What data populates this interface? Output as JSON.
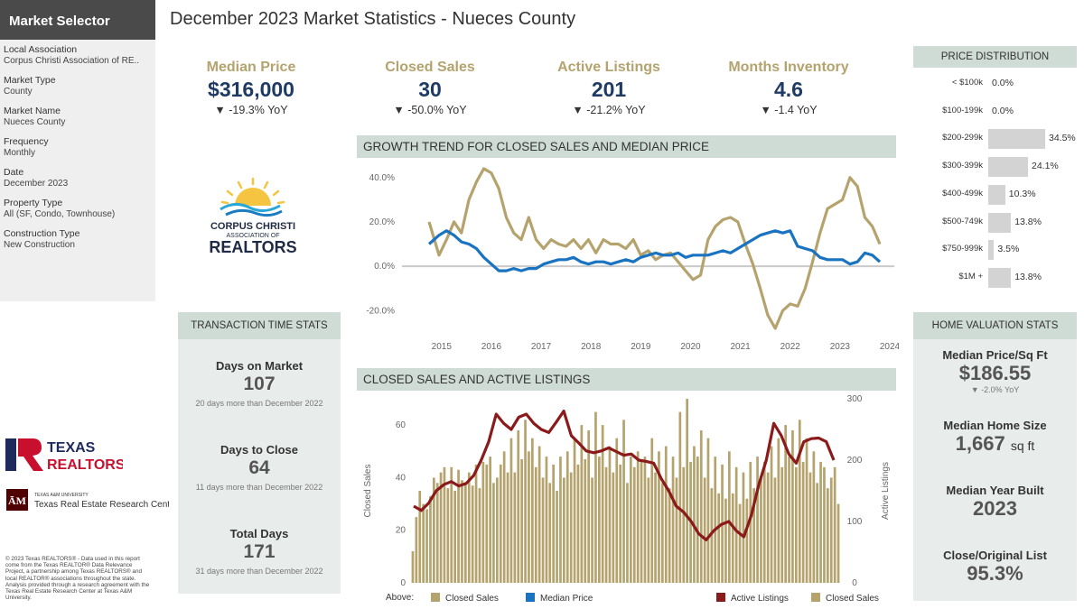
{
  "sidebar": {
    "title": "Market Selector",
    "filters": [
      {
        "label": "Local Association",
        "value": "Corpus Christi Association of RE.."
      },
      {
        "label": "Market Type",
        "value": "County"
      },
      {
        "label": "Market Name",
        "value": "Nueces County"
      },
      {
        "label": "Frequency",
        "value": "Monthly"
      },
      {
        "label": "Date",
        "value": "December 2023"
      },
      {
        "label": "Property Type",
        "value": "All (SF, Condo, Townhouse)"
      },
      {
        "label": "Construction Type",
        "value": "New Construction"
      }
    ]
  },
  "page_title": "December 2023 Market Statistics - Nueces County",
  "kpis": [
    {
      "label": "Median Price",
      "value": "$316,000",
      "change": "▼ -19.3% YoY"
    },
    {
      "label": "Closed Sales",
      "value": "30",
      "change": "▼ -50.0% YoY"
    },
    {
      "label": "Active Listings",
      "value": "201",
      "change": "▼ -21.2% YoY"
    },
    {
      "label": "Months Inventory",
      "value": "4.6",
      "change": "▼ -1.4 YoY"
    }
  ],
  "logos": {
    "cc_line1": "CORPUS CHRISTI",
    "cc_line2": "ASSOCIATION OF",
    "cc_line3": "REALTORS",
    "tx_line1": "TEXAS",
    "tx_line2": "REALTORS",
    "tamu_small": "TEXAS A&M UNIVERSITY",
    "tamu_name": "Texas Real Estate Research Center"
  },
  "copyright": "© 2023 Texas REALTORS® - Data used in this report come from the Texas REALTOR® Data Relevance Project, a partnership among Texas REALTORS® and local REALTOR® associations throughout the state. Analysis provided through a research agreement with the Texas Real Estate Research Center at Texas A&M University.",
  "transaction_stats": {
    "header": "TRANSACTION TIME STATS",
    "items": [
      {
        "title": "Days on Market",
        "value": "107",
        "note": "20 days more than December 2022"
      },
      {
        "title": "Days to Close",
        "value": "64",
        "note": "11 days more than December 2022"
      },
      {
        "title": "Total Days",
        "value": "171",
        "note": "31 days more than December 2022"
      }
    ]
  },
  "price_distribution": {
    "header": "PRICE DISTRIBUTION",
    "rows": [
      {
        "label": "< $100k",
        "pct": 0.0,
        "pct_label": "0.0%"
      },
      {
        "label": "$100-199k",
        "pct": 0.0,
        "pct_label": "0.0%"
      },
      {
        "label": "$200-299k",
        "pct": 34.5,
        "pct_label": "34.5%"
      },
      {
        "label": "$300-399k",
        "pct": 24.1,
        "pct_label": "24.1%"
      },
      {
        "label": "$400-499k",
        "pct": 10.3,
        "pct_label": "10.3%"
      },
      {
        "label": "$500-749k",
        "pct": 13.8,
        "pct_label": "13.8%"
      },
      {
        "label": "$750-999k",
        "pct": 3.5,
        "pct_label": "3.5%"
      },
      {
        "label": "$1M +",
        "pct": 13.8,
        "pct_label": "13.8%"
      }
    ]
  },
  "home_valuation": {
    "header": "HOME VALUATION STATS",
    "median_price_sqft_title": "Median Price/Sq Ft",
    "median_price_sqft_value": "$186.55",
    "median_price_sqft_note": "▼ -2.0% YoY",
    "median_home_size_title": "Median Home Size",
    "median_home_size_value": "1,667",
    "median_home_size_unit": "sq ft",
    "median_year_built_title": "Median Year Built",
    "median_year_built_value": "2023",
    "close_original_title": "Close/Original List",
    "close_original_value": "95.3%"
  },
  "colors": {
    "gold": "#b5a36e",
    "blue": "#1a73c1",
    "maroon": "#8b1a1a",
    "navy": "#1f3b64"
  },
  "chart_data": [
    {
      "type": "line",
      "title": "GROWTH TREND FOR CLOSED SALES AND MEDIAN PRICE",
      "x_ticks": [
        "2015",
        "2016",
        "2017",
        "2018",
        "2019",
        "2020",
        "2021",
        "2022",
        "2023",
        "2024"
      ],
      "y_ticks": [
        "40.0%",
        "20.0%",
        "0.0%",
        "-20.0%"
      ],
      "ylim": [
        -28,
        46
      ],
      "xlim": [
        2014.75,
        2024.0
      ],
      "series": [
        {
          "name": "Closed Sales",
          "color": "#b5a36e",
          "x": [
            2014.75,
            2014.95,
            2015.1,
            2015.25,
            2015.4,
            2015.55,
            2015.7,
            2015.85,
            2016.0,
            2016.15,
            2016.3,
            2016.45,
            2016.6,
            2016.75,
            2016.9,
            2017.05,
            2017.2,
            2017.35,
            2017.5,
            2017.65,
            2017.8,
            2017.95,
            2018.1,
            2018.25,
            2018.4,
            2018.55,
            2018.7,
            2018.85,
            2019.0,
            2019.15,
            2019.3,
            2019.45,
            2019.6,
            2019.75,
            2019.9,
            2020.05,
            2020.2,
            2020.35,
            2020.5,
            2020.65,
            2020.8,
            2020.95,
            2021.1,
            2021.25,
            2021.4,
            2021.55,
            2021.7,
            2021.85,
            2022.0,
            2022.15,
            2022.3,
            2022.45,
            2022.6,
            2022.75,
            2022.9,
            2023.05,
            2023.2,
            2023.35,
            2023.5,
            2023.65,
            2023.8
          ],
          "values": [
            20,
            5,
            12,
            20,
            15,
            30,
            38,
            44,
            42,
            35,
            22,
            15,
            12,
            22,
            12,
            8,
            12,
            10,
            9,
            12,
            8,
            12,
            6,
            12,
            10,
            10,
            8,
            12,
            5,
            7,
            3,
            5,
            6,
            2,
            -2,
            -6,
            -4,
            12,
            18,
            21,
            22,
            20,
            10,
            1,
            -10,
            -22,
            -28,
            -20,
            -17,
            -18,
            -10,
            2,
            15,
            26,
            28,
            30,
            40,
            36,
            22,
            18,
            10
          ]
        },
        {
          "name": "Median Price",
          "color": "#1a73c1",
          "x": [
            2014.75,
            2014.95,
            2015.1,
            2015.25,
            2015.4,
            2015.55,
            2015.7,
            2015.85,
            2016.0,
            2016.15,
            2016.3,
            2016.45,
            2016.6,
            2016.75,
            2016.9,
            2017.05,
            2017.2,
            2017.35,
            2017.5,
            2017.65,
            2017.8,
            2017.95,
            2018.1,
            2018.25,
            2018.4,
            2018.55,
            2018.7,
            2018.85,
            2019.0,
            2019.15,
            2019.3,
            2019.45,
            2019.6,
            2019.75,
            2019.9,
            2020.05,
            2020.2,
            2020.35,
            2020.5,
            2020.65,
            2020.8,
            2020.95,
            2021.1,
            2021.25,
            2021.4,
            2021.55,
            2021.7,
            2021.85,
            2022.0,
            2022.15,
            2022.3,
            2022.45,
            2022.6,
            2022.75,
            2022.9,
            2023.05,
            2023.2,
            2023.35,
            2023.5,
            2023.65,
            2023.8
          ],
          "values": [
            10,
            14,
            16,
            14,
            11,
            10,
            8,
            4,
            1,
            -2,
            -2,
            -1,
            -2,
            -1,
            -1,
            1,
            2,
            3,
            3,
            4,
            2,
            1,
            2,
            2,
            1,
            2,
            3,
            2,
            4,
            5,
            6,
            5,
            5,
            6,
            4,
            5,
            5,
            5,
            6,
            7,
            6,
            8,
            10,
            12,
            14,
            15,
            16,
            15,
            16,
            9,
            8,
            7,
            4,
            3,
            3,
            3,
            1,
            2,
            6,
            5,
            2
          ]
        }
      ]
    },
    {
      "type": "bar",
      "title": "CLOSED SALES AND ACTIVE LISTINGS",
      "ylabel": "Closed Sales",
      "ylabel_right": "Active Listings",
      "ylim": [
        0,
        70
      ],
      "ylim_right": [
        0,
        300
      ],
      "left_ticks": [
        0,
        20,
        40,
        60
      ],
      "right_ticks": [
        0,
        100,
        200,
        300
      ],
      "series": [
        {
          "name": "Closed Sales",
          "color": "#b5a36e",
          "values": [
            12,
            25,
            35,
            30,
            28,
            33,
            40,
            38,
            42,
            44,
            36,
            44,
            35,
            43,
            39,
            38,
            42,
            37,
            45,
            36,
            46,
            45,
            48,
            38,
            40,
            45,
            50,
            42,
            55,
            42,
            58,
            47,
            62,
            50,
            55,
            44,
            52,
            40,
            48,
            38,
            45,
            35,
            48,
            40,
            50,
            42,
            55,
            45,
            60,
            47,
            58,
            40,
            65,
            48,
            60,
            44,
            52,
            42,
            55,
            45,
            62,
            38,
            48,
            44,
            50,
            46,
            48,
            40,
            55,
            42,
            50,
            38,
            52,
            36,
            48,
            40,
            65,
            44,
            70,
            46,
            52,
            48,
            58,
            40,
            55,
            36,
            48,
            34,
            45,
            32,
            50,
            34,
            44,
            30,
            42,
            32,
            46,
            36,
            48,
            40,
            46,
            42,
            52,
            40,
            55,
            44,
            60,
            48,
            58,
            44,
            62,
            46,
            55,
            42,
            50,
            38,
            46,
            44,
            36,
            40,
            44,
            30
          ]
        },
        {
          "name": "Active Listings",
          "color": "#8b1a1a",
          "values": [
            125,
            118,
            130,
            150,
            160,
            165,
            158,
            162,
            175,
            200,
            230,
            275,
            260,
            250,
            270,
            275,
            260,
            250,
            245,
            262,
            280,
            240,
            228,
            215,
            212,
            215,
            220,
            214,
            208,
            210,
            200,
            198,
            195,
            170,
            150,
            125,
            115,
            100,
            80,
            70,
            85,
            95,
            100,
            85,
            75,
            110,
            160,
            200,
            260,
            240,
            210,
            195,
            230,
            235,
            236,
            230,
            200
          ]
        }
      ]
    }
  ],
  "chart1_header": "GROWTH TREND FOR CLOSED SALES AND MEDIAN PRICE",
  "chart2_header": "CLOSED SALES AND ACTIVE LISTINGS",
  "legend": {
    "above_label": "Above:",
    "item1": "Closed Sales",
    "item2": "Median Price",
    "item3": "Active Listings",
    "item4": "Closed Sales"
  }
}
